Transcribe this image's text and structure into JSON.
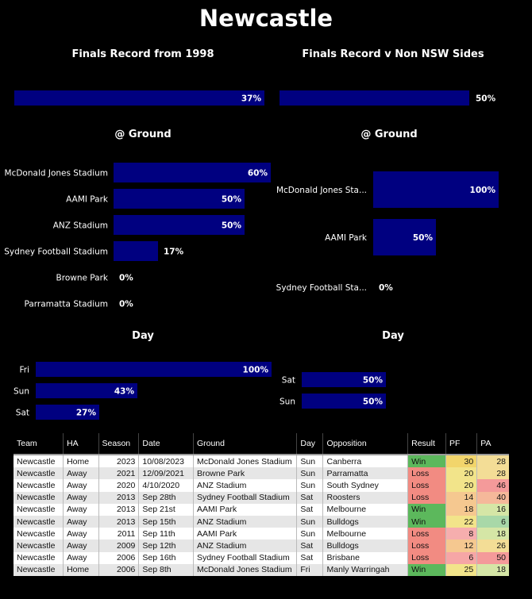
{
  "page_title": "Newcastle",
  "colors": {
    "bar": "#000080",
    "win": "#5cb85c",
    "loss": "#f28b82"
  },
  "chart_data": [
    {
      "type": "bar",
      "title": "Finals Record from 1998",
      "categories": [
        ""
      ],
      "values": [
        37
      ],
      "value_suffix": "%",
      "xlim": [
        0,
        100
      ]
    },
    {
      "type": "bar",
      "title": "Finals Record v Non NSW Sides",
      "categories": [
        ""
      ],
      "values": [
        50
      ],
      "value_suffix": "%",
      "xlim": [
        0,
        100
      ]
    },
    {
      "type": "bar",
      "title": "@ Ground",
      "categories": [
        "McDonald Jones Stadium",
        "AAMI Park",
        "ANZ Stadium",
        "Sydney Football Stadium",
        "Browne Park",
        "Parramatta Stadium"
      ],
      "values": [
        60,
        50,
        50,
        17,
        0,
        0
      ],
      "value_suffix": "%",
      "xlim": [
        0,
        100
      ]
    },
    {
      "type": "bar",
      "title": "@ Ground",
      "categories": [
        "McDonald Jones Sta...",
        "AAMI Park",
        "Sydney Football Sta..."
      ],
      "values": [
        100,
        50,
        0
      ],
      "value_suffix": "%",
      "xlim": [
        0,
        100
      ]
    },
    {
      "type": "bar",
      "title": "Day",
      "categories": [
        "Fri",
        "Sun",
        "Sat"
      ],
      "values": [
        100,
        43,
        27
      ],
      "value_suffix": "%",
      "xlim": [
        0,
        100
      ]
    },
    {
      "type": "bar",
      "title": "Day",
      "categories": [
        "Sat",
        "Sun"
      ],
      "values": [
        50,
        50
      ],
      "value_suffix": "%",
      "xlim": [
        0,
        100
      ]
    }
  ],
  "table": {
    "headers": [
      "Team",
      "HA",
      "Season",
      "Date",
      "Ground",
      "Day",
      "Opposition",
      "Result",
      "PF",
      "PA"
    ],
    "rows": [
      [
        "Newcastle",
        "Home",
        "2023",
        "10/08/2023",
        "McDonald Jones Stadium",
        "Sun",
        "Canberra",
        "Win",
        "30",
        "28"
      ],
      [
        "Newcastle",
        "Away",
        "2021",
        "12/09/2021",
        "Browne Park",
        "Sun",
        "Parramatta",
        "Loss",
        "20",
        "28"
      ],
      [
        "Newcastle",
        "Away",
        "2020",
        "4/10/2020",
        "ANZ Stadium",
        "Sun",
        "South Sydney",
        "Loss",
        "20",
        "46"
      ],
      [
        "Newcastle",
        "Away",
        "2013",
        "Sep 28th",
        "Sydney Football Stadium",
        "Sat",
        "Roosters",
        "Loss",
        "14",
        "40"
      ],
      [
        "Newcastle",
        "Away",
        "2013",
        "Sep 21st",
        "AAMI Park",
        "Sat",
        "Melbourne",
        "Win",
        "18",
        "16"
      ],
      [
        "Newcastle",
        "Away",
        "2013",
        "Sep 15th",
        "ANZ Stadium",
        "Sun",
        "Bulldogs",
        "Win",
        "22",
        "6"
      ],
      [
        "Newcastle",
        "Away",
        "2011",
        "Sep 11th",
        "AAMI Park",
        "Sun",
        "Melbourne",
        "Loss",
        "8",
        "18"
      ],
      [
        "Newcastle",
        "Away",
        "2009",
        "Sep 12th",
        "ANZ Stadium",
        "Sat",
        "Bulldogs",
        "Loss",
        "12",
        "26"
      ],
      [
        "Newcastle",
        "Away",
        "2006",
        "Sep 16th",
        "Sydney Football Stadium",
        "Sat",
        "Brisbane",
        "Loss",
        "6",
        "50"
      ],
      [
        "Newcastle",
        "Home",
        "2006",
        "Sep 8th",
        "McDonald Jones Stadium",
        "Fri",
        "Manly Warringah",
        "Win",
        "25",
        "18"
      ]
    ]
  }
}
